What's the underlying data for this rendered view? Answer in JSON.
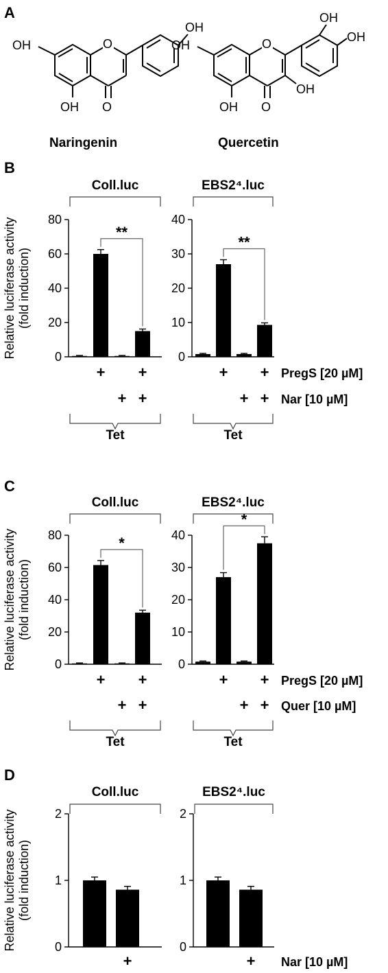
{
  "panel_a": {
    "label": "A",
    "molecules": [
      {
        "name": "Naringenin",
        "groups": {
          "oh_top": "OH",
          "oh_left": "OH",
          "oh_bottom": "OH",
          "ring_o": "O",
          "keto_o": "O"
        }
      },
      {
        "name": "Quercetin",
        "groups": {
          "oh_top": "OH",
          "oh_top2": "OH",
          "oh_left": "OH",
          "oh_bottom": "OH",
          "oh_c3": "OH",
          "ring_o": "O",
          "keto_o": "O"
        }
      }
    ]
  },
  "chart_data": [
    {
      "type": "bar",
      "panel": "B",
      "title": "Coll.luc",
      "ylabel": "Relative luciferase activity\n(fold induction)",
      "ylim": [
        0,
        80
      ],
      "yticks": [
        0,
        20,
        40,
        60,
        80
      ],
      "values": [
        0.5,
        60,
        0.5,
        15
      ],
      "errors": [
        0.3,
        2.5,
        0.3,
        1.2
      ],
      "significance": {
        "from": 1,
        "to": 3,
        "label": "**"
      },
      "row_labels": [
        {
          "name": "PregS [20 µM]",
          "marks": [
            "",
            "+",
            "",
            "+"
          ]
        },
        {
          "name": "Nar [10 µM]",
          "marks": [
            "",
            "",
            "+",
            "+"
          ]
        }
      ],
      "group_label": "Tet"
    },
    {
      "type": "bar",
      "panel": "B",
      "title": "EBS2⁴.luc",
      "ylim": [
        0,
        40
      ],
      "yticks": [
        0,
        10,
        20,
        30,
        40
      ],
      "values": [
        0.8,
        27,
        0.8,
        9.3
      ],
      "errors": [
        0.2,
        1.3,
        0.2,
        0.6
      ],
      "significance": {
        "from": 1,
        "to": 3,
        "label": "**"
      },
      "group_label": "Tet"
    },
    {
      "type": "bar",
      "panel": "C",
      "title": "Coll.luc",
      "ylabel": "Relative luciferase activity\n(fold induction)",
      "ylim": [
        0,
        80
      ],
      "yticks": [
        0,
        20,
        40,
        60,
        80
      ],
      "values": [
        0.5,
        61.5,
        0.5,
        32
      ],
      "errors": [
        0.3,
        2.8,
        0.3,
        1.5
      ],
      "significance": {
        "from": 1,
        "to": 3,
        "label": "*"
      },
      "row_labels": [
        {
          "name": "PregS [20 µM]",
          "marks": [
            "",
            "+",
            "",
            "+"
          ]
        },
        {
          "name": "Quer [10 µM]",
          "marks": [
            "",
            "",
            "+",
            "+"
          ]
        }
      ],
      "group_label": "Tet"
    },
    {
      "type": "bar",
      "panel": "C",
      "title": "EBS2⁴.luc",
      "ylim": [
        0,
        40
      ],
      "yticks": [
        0,
        10,
        20,
        30,
        40
      ],
      "values": [
        0.8,
        27,
        0.8,
        37.5
      ],
      "errors": [
        0.2,
        1.4,
        0.2,
        2.0
      ],
      "significance": {
        "from": 1,
        "to": 3,
        "label": "*"
      },
      "group_label": "Tet"
    },
    {
      "type": "bar",
      "panel": "D",
      "title": "Coll.luc",
      "ylabel": "Relative luciferase activity\n(fold induction)",
      "ylim": [
        0,
        2
      ],
      "yticks": [
        0,
        1,
        2
      ],
      "values": [
        1.0,
        0.86
      ],
      "errors": [
        0.05,
        0.05
      ],
      "row_labels": [
        {
          "name": "Nar [10 µM]",
          "marks": [
            "",
            "+"
          ]
        }
      ]
    },
    {
      "type": "bar",
      "panel": "D",
      "title": "EBS2⁴.luc",
      "ylim": [
        0,
        2
      ],
      "yticks": [
        0,
        1,
        2
      ],
      "values": [
        1.0,
        0.86
      ],
      "errors": [
        0.05,
        0.05
      ]
    }
  ]
}
